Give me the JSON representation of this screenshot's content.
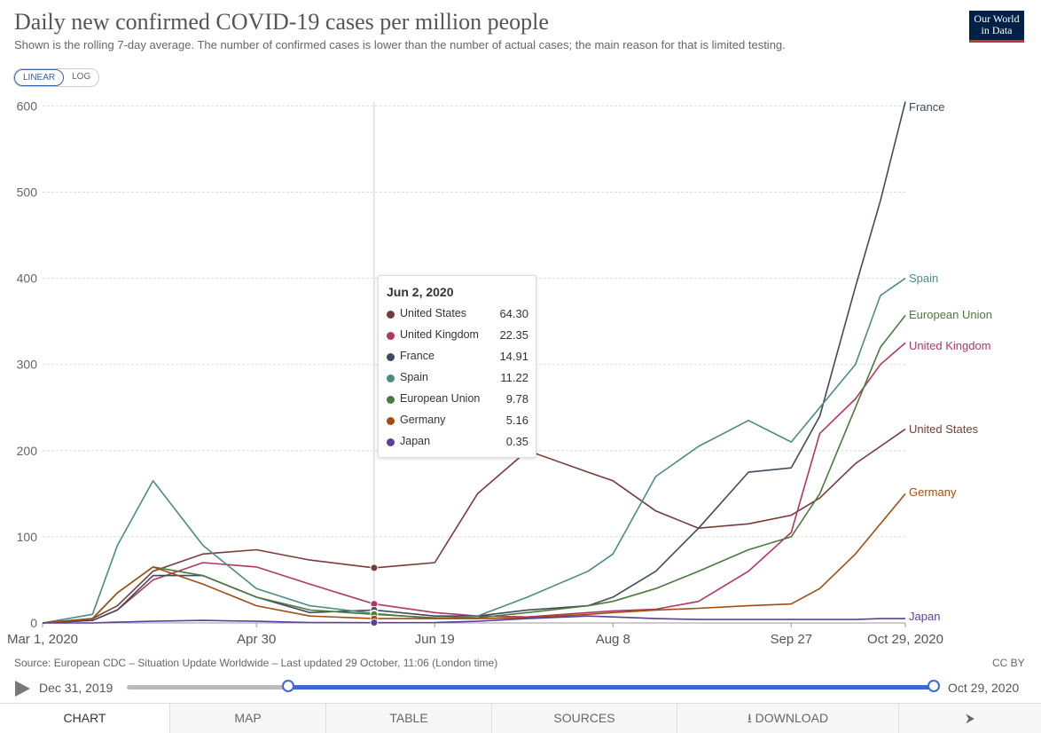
{
  "header": {
    "title": "Daily new confirmed COVID-19 cases per million people",
    "subtitle": "Shown is the rolling 7-day average. The number of confirmed cases is lower than the number of actual cases; the main reason for that is limited testing.",
    "logo_line1": "Our World",
    "logo_line2": "in Data"
  },
  "controls": {
    "linear": "LINEAR",
    "log": "LOG"
  },
  "chart_data": {
    "type": "line",
    "title": "Daily new confirmed COVID-19 cases per million people",
    "xlabel": "",
    "ylabel": "",
    "ylim": [
      0,
      620
    ],
    "x_ticks": [
      "Mar 1, 2020",
      "Apr 30",
      "Jun 19",
      "Aug 8",
      "Sep 27",
      "Oct 29, 2020"
    ],
    "y_ticks": [
      "0",
      "100",
      "200",
      "300",
      "400",
      "500",
      "600"
    ],
    "x_dates": [
      "Mar 1",
      "Mar 15",
      "Mar 22",
      "Apr 1",
      "Apr 15",
      "Apr 30",
      "May 15",
      "Jun 2",
      "Jun 19",
      "Jul 1",
      "Jul 15",
      "Aug 1",
      "Aug 8",
      "Aug 20",
      "Sep 1",
      "Sep 15",
      "Sep 27",
      "Oct 5",
      "Oct 15",
      "Oct 22",
      "Oct 29"
    ],
    "series": [
      {
        "name": "United States",
        "color": "#7a3a39",
        "values": [
          0,
          5,
          20,
          60,
          80,
          85,
          73,
          64,
          70,
          150,
          200,
          175,
          165,
          130,
          110,
          115,
          125,
          145,
          185,
          205,
          225
        ]
      },
      {
        "name": "United Kingdom",
        "color": "#b13760",
        "values": [
          0,
          3,
          15,
          50,
          70,
          65,
          45,
          22,
          12,
          8,
          7,
          12,
          14,
          16,
          25,
          60,
          105,
          220,
          260,
          300,
          325
        ]
      },
      {
        "name": "France",
        "color": "#3f4a5c",
        "values": [
          0,
          3,
          15,
          55,
          55,
          30,
          12,
          15,
          8,
          8,
          15,
          20,
          30,
          60,
          110,
          175,
          180,
          240,
          390,
          490,
          605
        ]
      },
      {
        "name": "Spain",
        "color": "#4d8a81",
        "values": [
          0,
          10,
          90,
          165,
          90,
          40,
          20,
          11,
          5,
          8,
          30,
          60,
          80,
          170,
          205,
          235,
          210,
          250,
          300,
          380,
          400
        ]
      },
      {
        "name": "European Union",
        "color": "#4a7a3c",
        "values": [
          0,
          5,
          35,
          65,
          55,
          30,
          15,
          10,
          6,
          6,
          12,
          20,
          25,
          40,
          60,
          85,
          100,
          150,
          250,
          320,
          357
        ]
      },
      {
        "name": "Germany",
        "color": "#a14c10",
        "values": [
          0,
          5,
          35,
          65,
          45,
          20,
          8,
          5,
          5,
          5,
          6,
          10,
          12,
          15,
          17,
          20,
          22,
          40,
          80,
          115,
          150
        ]
      },
      {
        "name": "Japan",
        "color": "#5b3f9b",
        "values": [
          0,
          0,
          1,
          2,
          3,
          2,
          0.5,
          0.35,
          0.5,
          2,
          5,
          8,
          7,
          5,
          4,
          4,
          4,
          4,
          4,
          5,
          5
        ]
      }
    ]
  },
  "tooltip": {
    "date": "Jun 2, 2020",
    "rows": [
      {
        "name": "United States",
        "value": "64.30",
        "color": "#7a3a39"
      },
      {
        "name": "United Kingdom",
        "value": "22.35",
        "color": "#b13760"
      },
      {
        "name": "France",
        "value": "14.91",
        "color": "#3f4a5c"
      },
      {
        "name": "Spain",
        "value": "11.22",
        "color": "#4d8a81"
      },
      {
        "name": "European Union",
        "value": "9.78",
        "color": "#4a7a3c"
      },
      {
        "name": "Germany",
        "value": "5.16",
        "color": "#a14c10"
      },
      {
        "name": "Japan",
        "value": "0.35",
        "color": "#5b3f9b"
      }
    ]
  },
  "footer": {
    "source": "Source: European CDC – Situation Update Worldwide – Last updated 29 October, 11:06 (London time)",
    "license": "CC BY"
  },
  "timeline": {
    "start": "Dec 31, 2019",
    "end": "Oct 29, 2020"
  },
  "tabs": [
    "CHART",
    "MAP",
    "TABLE",
    "SOURCES",
    "DOWNLOAD",
    ""
  ]
}
